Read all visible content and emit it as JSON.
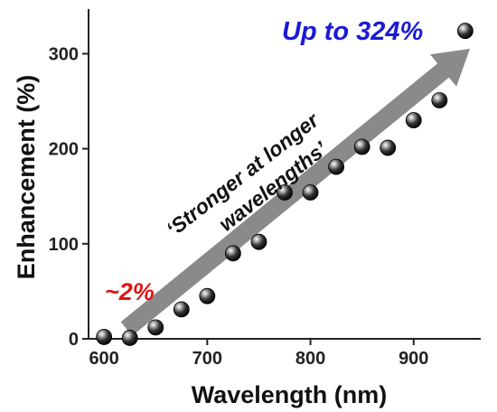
{
  "chart_data": {
    "type": "scatter",
    "xlabel": "Wavelength (nm)",
    "ylabel": "Enhancement (%)",
    "xlim": [
      585,
      965
    ],
    "ylim": [
      0,
      347
    ],
    "xticks": [
      600,
      700,
      800,
      900
    ],
    "yticks": [
      0,
      100,
      200,
      300
    ],
    "grid": false,
    "series": [
      {
        "x": [
          600,
          625,
          650,
          675,
          700,
          725,
          750,
          775,
          800,
          825,
          850,
          875,
          900,
          925,
          950
        ],
        "y": [
          2,
          1,
          12,
          31,
          45,
          90,
          102,
          154,
          154,
          181,
          202,
          201,
          230,
          251,
          324
        ]
      }
    ],
    "annotations": [
      {
        "text": "Up to 324%",
        "color": "#1a1ad6"
      },
      {
        "text": "~2%",
        "color": "#e01414"
      },
      {
        "text": "‘Stronger at longer",
        "color": "#111111"
      },
      {
        "text": "wavelengths’",
        "color": "#111111"
      }
    ],
    "arrow_color": "#8a8a8a"
  }
}
